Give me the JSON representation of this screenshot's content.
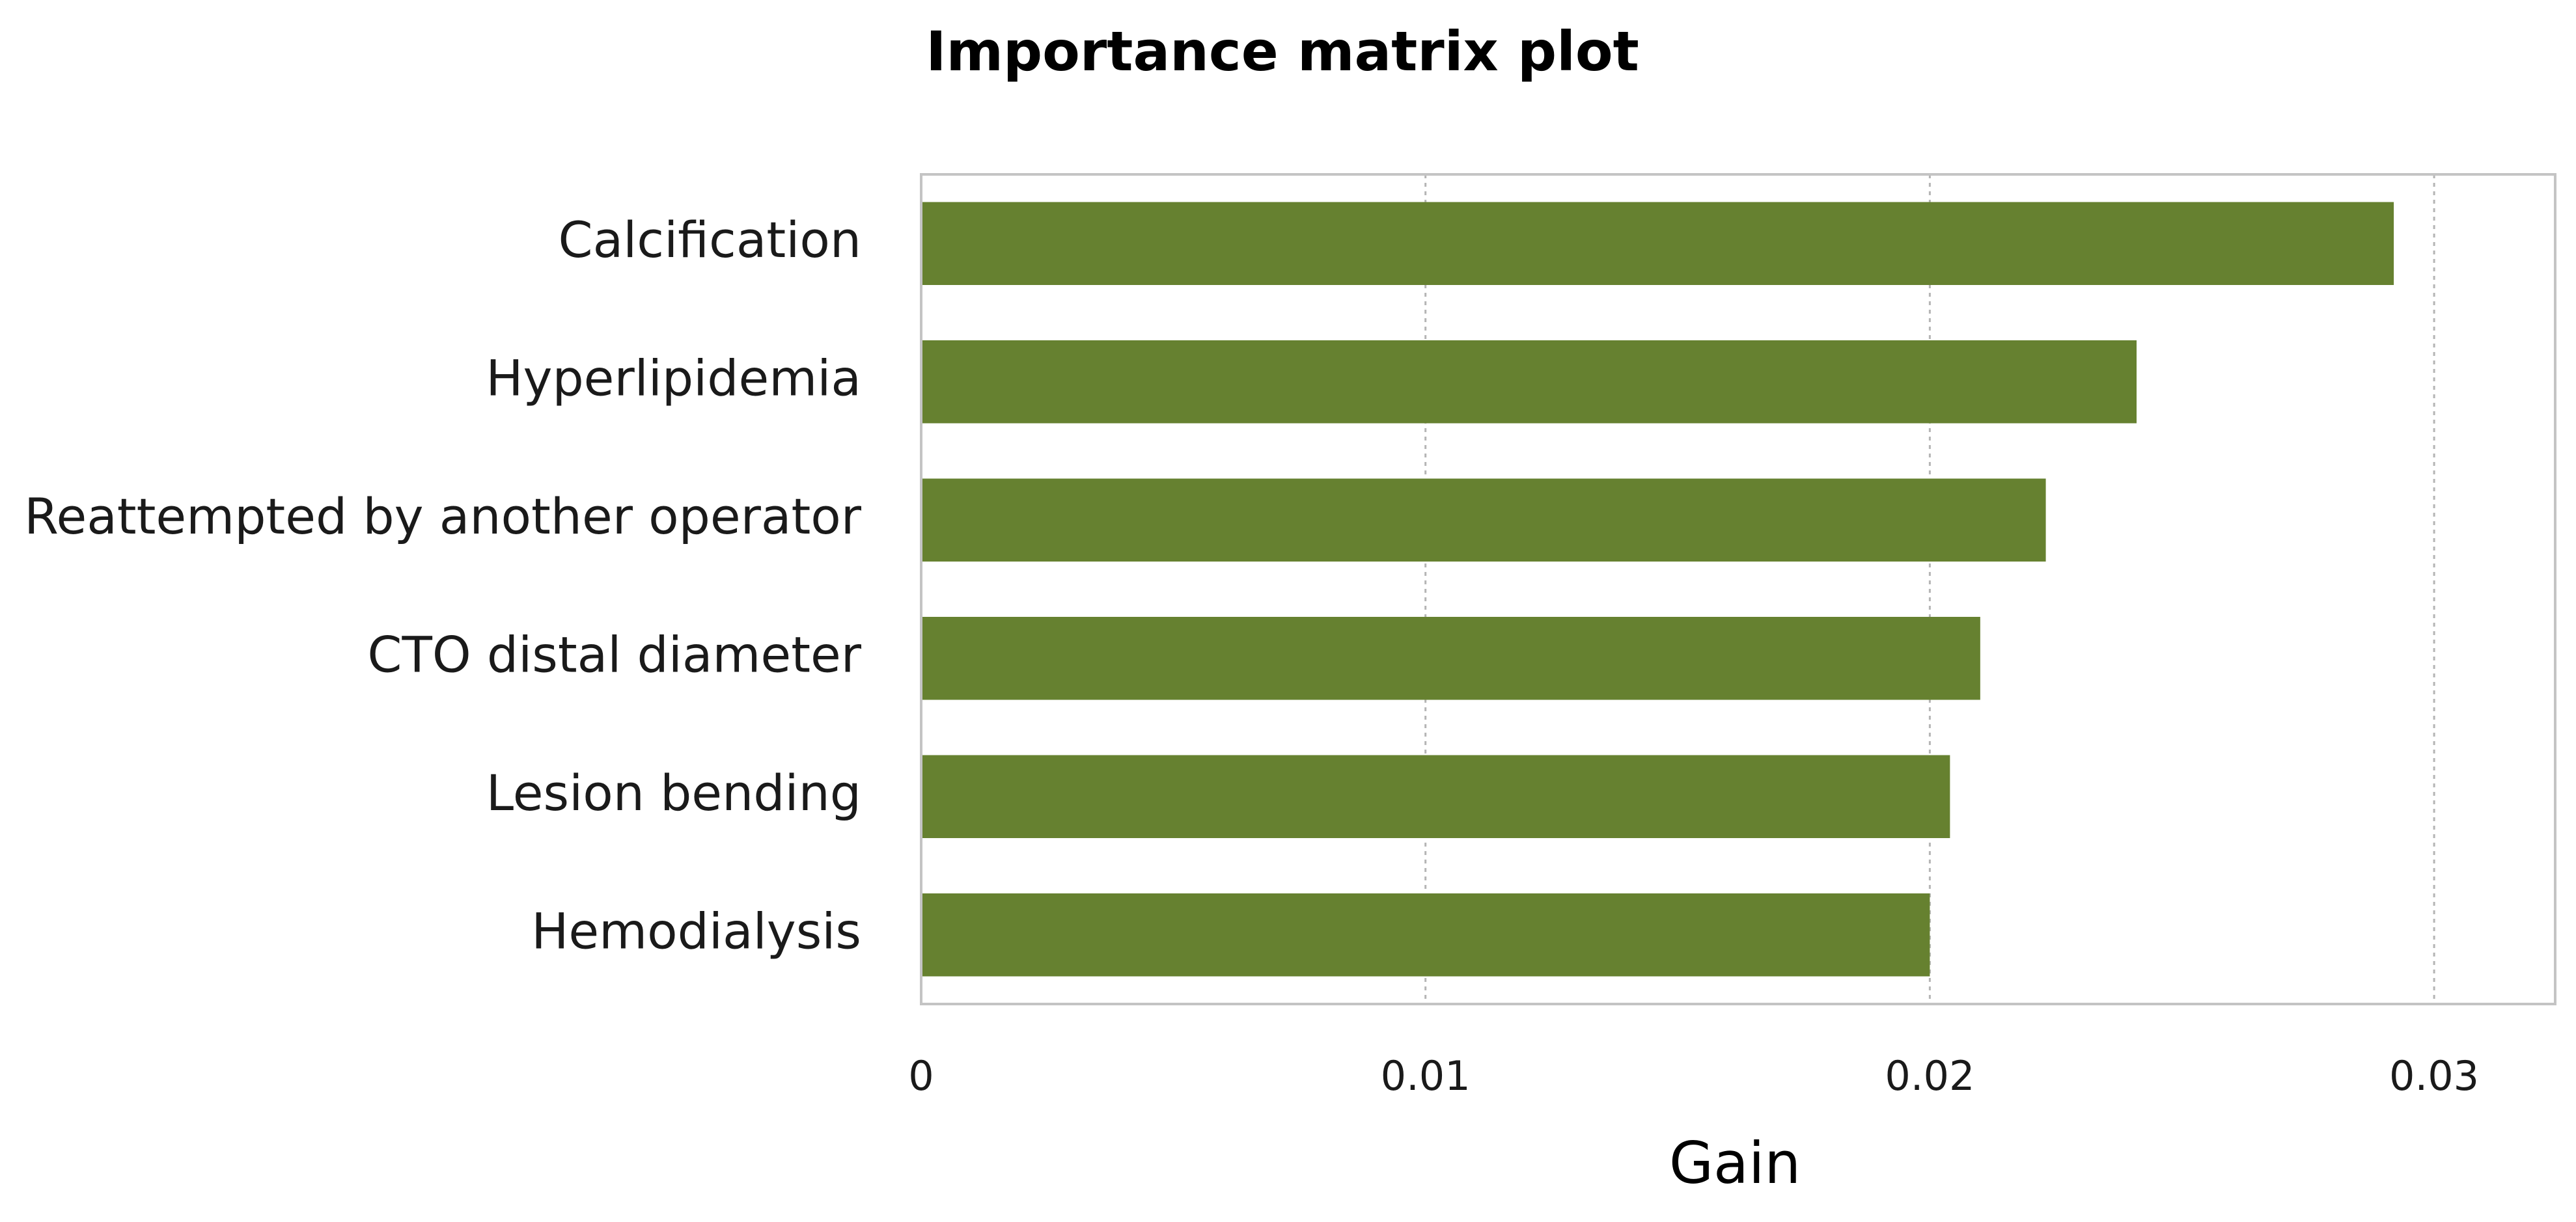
{
  "chart_data": {
    "type": "bar",
    "orientation": "horizontal",
    "title": "Importance matrix plot",
    "xlabel": "Gain",
    "ylabel": "",
    "categories": [
      "Calcification",
      "Hyperlipidemia",
      "Reattempted by another operator",
      "CTO distal diameter",
      "Lesion bending",
      "Hemodialysis"
    ],
    "values": [
      0.0292,
      0.0241,
      0.0223,
      0.021,
      0.0204,
      0.02
    ],
    "xlim": [
      0,
      0.0324
    ],
    "xticks": [
      0,
      0.01,
      0.02,
      0.03
    ],
    "xtick_labels": [
      "0",
      "0.01",
      "0.02",
      "0.03"
    ],
    "grid": "vertical dotted",
    "legend": "none",
    "bar_color": "#668130"
  }
}
